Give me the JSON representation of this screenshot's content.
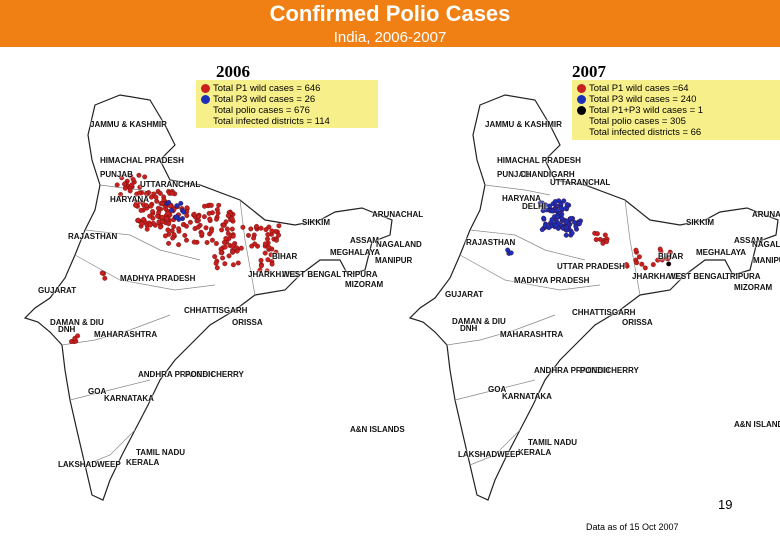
{
  "header": {
    "title": "Confirmed Polio Cases",
    "subtitle": "India, 2006-2007"
  },
  "colors": {
    "banner": "#f07f14",
    "legend_bg": "#f7f08a",
    "p1": "#c8201e",
    "p3": "#1c2fb8",
    "p1p3": "#000000"
  },
  "maps": [
    {
      "year": "2006",
      "legend": [
        {
          "text": "Total P1 wild cases = 646",
          "marker": "p1"
        },
        {
          "text": "Total P3 wild cases = 26",
          "marker": "p3"
        },
        {
          "text": "Total polio cases = 676",
          "marker": "none"
        },
        {
          "text": "Total infected districts = 114",
          "marker": "none"
        }
      ],
      "labels": [
        "JAMMU & KASHMIR",
        "HIMACHAL PRADESH",
        "PUNJAB",
        "UTTARANCHAL",
        "HARYANA",
        "RAJASTHAN",
        "SIKKIM",
        "ARUNACHAL",
        "ASSAM",
        "NAGALAND",
        "MEGHALAYA",
        "MANIPUR",
        "BIHAR",
        "JHARKHAND",
        "WEST BENGAL",
        "TRIPURA",
        "MIZORAM",
        "MADHYA PRADESH",
        "GUJARAT",
        "CHHATTISGARH",
        "ORISSA",
        "DAMAN & DIU",
        "DNH",
        "MAHARASHTRA",
        "ANDHRA PRADESH",
        "PONDICHERRY",
        "GOA",
        "KARNATAKA",
        "A&N ISLANDS",
        "TAMIL NADU",
        "KERALA",
        "LAKSHADWEEP"
      ]
    },
    {
      "year": "2007",
      "legend": [
        {
          "text": "Total P1 wild cases =64",
          "marker": "p1"
        },
        {
          "text": "Total P3 wild cases = 240",
          "marker": "p3"
        },
        {
          "text": "Total P1+P3 wild cases = 1",
          "marker": "p1p3"
        },
        {
          "text": "Total polio cases = 305",
          "marker": "none"
        },
        {
          "text": "Total infected districts = 66",
          "marker": "none"
        }
      ],
      "labels": [
        "JAMMU & KASHMIR",
        "HIMACHAL PRADESH",
        "PUNJAB",
        "CHANDIGARH",
        "UTTARANCHAL",
        "HARYANA",
        "DELHI",
        "RAJASTHAN",
        "SIKKIM",
        "ARUNACHAL",
        "ASSAM",
        "NAGALAND",
        "MEGHALAYA",
        "MANIPUR",
        "BIHAR",
        "JHARKHAND",
        "WEST BENGAL",
        "TRIPURA",
        "MIZORAM",
        "UTTAR PRADESH",
        "MADHYA PRADESH",
        "GUJARAT",
        "CHHATTISGARH",
        "ORISSA",
        "DAMAN & DIU",
        "DNH",
        "MAHARASHTRA",
        "ANDHRA PRADESH",
        "PONDICHERRY",
        "GOA",
        "KARNATAKA",
        "A&N ISLANDS",
        "TAMIL NADU",
        "KERALA",
        "LAKSHADWEEP"
      ]
    }
  ],
  "page_number": "19",
  "footnote": "Data as of 15 Oct 2007"
}
